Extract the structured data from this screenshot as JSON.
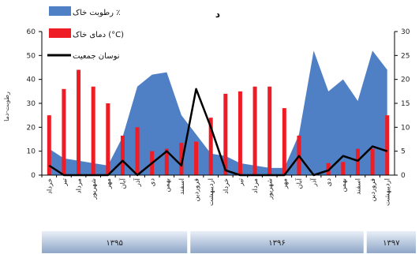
{
  "chart_data": {
    "type": "bar",
    "title": "د",
    "ylabel": "رطوبت-دما",
    "ylim_left": [
      0,
      60
    ],
    "ylim_right": [
      0,
      30
    ],
    "yticks_left": [
      "0",
      "10",
      "20",
      "30",
      "40",
      "50",
      "60"
    ],
    "yticks_right": [
      "0",
      "5",
      "10",
      "15",
      "20",
      "25",
      "30"
    ],
    "categories": [
      "خرداد",
      "تیر",
      "مرداد",
      "شهریور",
      "مهر",
      "آبان",
      "آذر",
      "دی",
      "بهمن",
      "اسفند",
      "فروردین",
      "اردیبهشت",
      "خرداد",
      "تیر",
      "مرداد",
      "شهریور",
      "مهر",
      "آبان",
      "آذر",
      "دی",
      "بهمن",
      "اسفند",
      "فروردین",
      "اردیبهشت"
    ],
    "series": [
      {
        "name": "رطوبت خاک ٪",
        "type": "area",
        "axis": "left",
        "color": "#4f7fc4",
        "values": [
          11,
          7,
          6,
          5,
          4,
          16,
          37,
          42,
          43,
          25,
          17,
          9,
          8,
          5,
          4,
          3,
          3,
          17,
          52,
          35,
          40,
          31,
          52,
          44
        ]
      },
      {
        "name": "دمای خاک (°C)",
        "type": "bar",
        "axis": "left",
        "color": "#ee1c24",
        "values": [
          25,
          36,
          44,
          37,
          30,
          16.5,
          20,
          10,
          11,
          13.5,
          14,
          24,
          34,
          35,
          37,
          37,
          28,
          16.5,
          0,
          5,
          5.5,
          11,
          11,
          25
        ]
      },
      {
        "name": "نوسان جمعیت",
        "type": "line",
        "axis": "right",
        "color": "#000000",
        "values": [
          2,
          0,
          0,
          0,
          0,
          3,
          0,
          2.5,
          5,
          2,
          18,
          10,
          1,
          0,
          0,
          0,
          0,
          4,
          0,
          1,
          4,
          3,
          6,
          5
        ]
      }
    ],
    "legend": "top-left",
    "grid": false,
    "year_groups": [
      {
        "label": "۱۳۹۵",
        "span": 10
      },
      {
        "label": "۱۳۹۶",
        "span": 12
      },
      {
        "label": "۱۳۹۷",
        "span": 2
      }
    ]
  }
}
